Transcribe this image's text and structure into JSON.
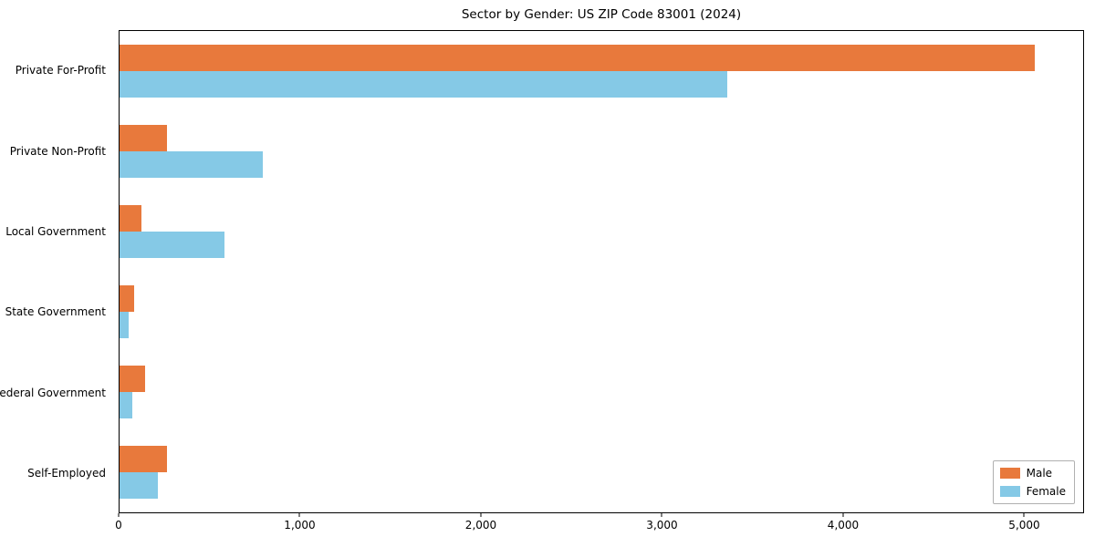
{
  "chart_data": {
    "type": "bar",
    "orientation": "horizontal",
    "title": "Sector by Gender: US ZIP Code 83001 (2024)",
    "categories": [
      "Private For-Profit",
      "Private Non-Profit",
      "Local Government",
      "State Government",
      "Federal Government",
      "Self-Employed"
    ],
    "series": [
      {
        "name": "Male",
        "color": "#E8793C",
        "values": [
          5060,
          260,
          120,
          80,
          140,
          260
        ]
      },
      {
        "name": "Female",
        "color": "#85C9E6",
        "values": [
          3360,
          790,
          580,
          50,
          70,
          210
        ]
      }
    ],
    "xlim": [
      0,
      5330
    ],
    "x_ticks": [
      {
        "value": 0,
        "label": "0"
      },
      {
        "value": 1000,
        "label": "1,000"
      },
      {
        "value": 2000,
        "label": "2,000"
      },
      {
        "value": 3000,
        "label": "3,000"
      },
      {
        "value": 4000,
        "label": "4,000"
      },
      {
        "value": 5000,
        "label": "5,000"
      }
    ],
    "xlabel": "",
    "ylabel": "",
    "grid": false,
    "legend_position": "lower right"
  },
  "colors": {
    "background": "#ffffff",
    "spine": "#000000",
    "male": "#E8793C",
    "female": "#85C9E6"
  }
}
